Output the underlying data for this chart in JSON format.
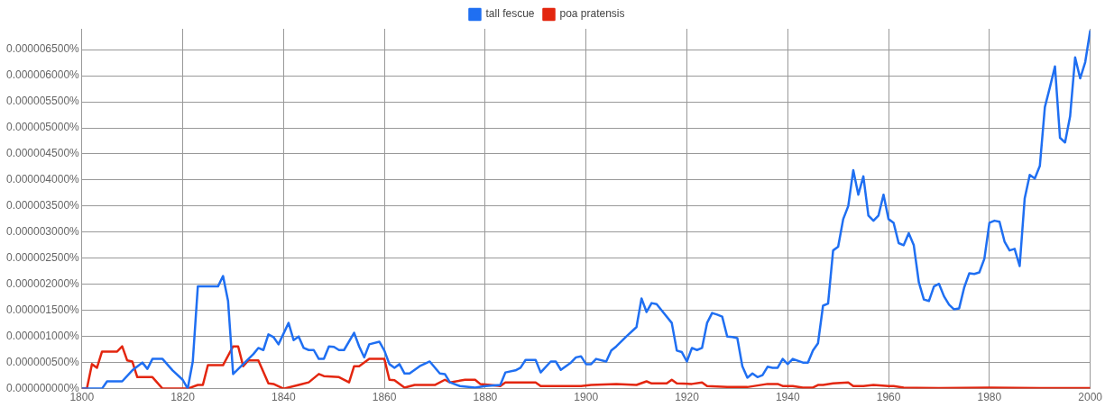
{
  "chart_data": {
    "type": "line",
    "legend": "top",
    "grid": true,
    "xlim": [
      1800,
      2000
    ],
    "xticks": [
      1800,
      1820,
      1840,
      1860,
      1880,
      1900,
      1920,
      1940,
      1960,
      1980,
      2000
    ],
    "ylim": [
      0,
      6.9e-06
    ],
    "yticks": [
      {
        "value": 0,
        "label": "0.000000000%"
      },
      {
        "value": 5e-07,
        "label": "0.000000500%"
      },
      {
        "value": 1e-06,
        "label": "0.000001000%"
      },
      {
        "value": 1.5e-06,
        "label": "0.000001500%"
      },
      {
        "value": 2e-06,
        "label": "0.000002000%"
      },
      {
        "value": 2.5e-06,
        "label": "0.000002500%"
      },
      {
        "value": 3e-06,
        "label": "0.000003000%"
      },
      {
        "value": 3.5e-06,
        "label": "0.000003500%"
      },
      {
        "value": 4e-06,
        "label": "0.000004000%"
      },
      {
        "value": 4.5e-06,
        "label": "0.000004500%"
      },
      {
        "value": 5e-06,
        "label": "0.000005000%"
      },
      {
        "value": 5.5e-06,
        "label": "0.000005500%"
      },
      {
        "value": 6e-06,
        "label": "0.000006000%"
      },
      {
        "value": 6.5e-06,
        "label": "0.000006500%"
      }
    ],
    "series": [
      {
        "name": "tall fescue",
        "color": "#1f6ff2",
        "x": [
          1800,
          1804,
          1805,
          1808,
          1810,
          1812,
          1813,
          1814,
          1816,
          1818,
          1820,
          1821,
          1822,
          1823,
          1827,
          1828,
          1829,
          1830,
          1832,
          1834,
          1835,
          1836,
          1837,
          1838,
          1839,
          1841,
          1842,
          1843,
          1844,
          1845,
          1846,
          1847,
          1848,
          1849,
          1850,
          1851,
          1852,
          1854,
          1855,
          1856,
          1857,
          1859,
          1860,
          1861,
          1862,
          1863,
          1864,
          1865,
          1867,
          1869,
          1871,
          1872,
          1873,
          1875,
          1878,
          1880,
          1883,
          1884,
          1886,
          1887,
          1888,
          1890,
          1891,
          1893,
          1894,
          1895,
          1897,
          1898,
          1899,
          1900,
          1901,
          1902,
          1904,
          1905,
          1906,
          1908,
          1910,
          1911,
          1912,
          1913,
          1914,
          1915,
          1917,
          1918,
          1919,
          1920,
          1921,
          1922,
          1923,
          1924,
          1925,
          1926,
          1927,
          1928,
          1929,
          1930,
          1931,
          1932,
          1933,
          1934,
          1935,
          1936,
          1937,
          1938,
          1939,
          1940,
          1941,
          1943,
          1944,
          1945,
          1946,
          1947,
          1948,
          1949,
          1950,
          1951,
          1952,
          1953,
          1954,
          1955,
          1956,
          1957,
          1958,
          1959,
          1960,
          1961,
          1962,
          1963,
          1964,
          1965,
          1966,
          1967,
          1968,
          1969,
          1970,
          1971,
          1972,
          1973,
          1974,
          1975,
          1976,
          1977,
          1978,
          1979,
          1980,
          1981,
          1982,
          1983,
          1984,
          1985,
          1986,
          1987,
          1988,
          1989,
          1990,
          1991,
          1992,
          1993,
          1994,
          1995,
          1996,
          1997,
          1998,
          1999,
          2000
        ],
        "values": [
          0,
          0,
          1.4e-07,
          1.4e-07,
          3.5e-07,
          5e-07,
          3.8e-07,
          5.7e-07,
          5.7e-07,
          3.5e-07,
          1.7e-07,
          0,
          5.2e-07,
          1.96e-06,
          1.96e-06,
          2.16e-06,
          1.68e-06,
          2.8e-07,
          4.7e-07,
          6.6e-07,
          7.8e-07,
          7.4e-07,
          1.04e-06,
          9.9e-07,
          8.5e-07,
          1.26e-06,
          9.3e-07,
          1e-06,
          7.8e-07,
          7.4e-07,
          7.4e-07,
          5.7e-07,
          5.7e-07,
          8.1e-07,
          8e-07,
          7.4e-07,
          7.4e-07,
          1.07e-06,
          8.1e-07,
          6e-07,
          8.5e-07,
          9e-07,
          7.3e-07,
          4.7e-07,
          4e-07,
          4.7e-07,
          2.9e-07,
          2.9e-07,
          4.3e-07,
          5.2e-07,
          2.9e-07,
          2.8e-07,
          1.2e-07,
          5e-08,
          2e-08,
          5e-08,
          7e-08,
          3.1e-07,
          3.5e-07,
          4e-07,
          5.5e-07,
          5.5e-07,
          3.1e-07,
          5.2e-07,
          5.2e-07,
          3.6e-07,
          5e-07,
          6e-07,
          6.2e-07,
          4.7e-07,
          4.7e-07,
          5.7e-07,
          5.2e-07,
          7.3e-07,
          8.1e-07,
          1e-06,
          1.18e-06,
          1.73e-06,
          1.47e-06,
          1.64e-06,
          1.62e-06,
          1.5e-06,
          1.26e-06,
          7.3e-07,
          7e-07,
          5.2e-07,
          7.8e-07,
          7.4e-07,
          7.8e-07,
          1.26e-06,
          1.45e-06,
          1.42e-06,
          1.38e-06,
          1e-06,
          9.9e-07,
          9.7e-07,
          4.3e-07,
          2.1e-07,
          2.9e-07,
          2.2e-07,
          2.6e-07,
          4.2e-07,
          4e-07,
          4e-07,
          5.7e-07,
          4.7e-07,
          5.7e-07,
          5e-07,
          5e-07,
          7.3e-07,
          8.7e-07,
          1.59e-06,
          1.63e-06,
          2.65e-06,
          2.72e-06,
          3.25e-06,
          3.5e-06,
          4.19e-06,
          3.72e-06,
          4.07e-06,
          3.32e-06,
          3.22e-06,
          3.32e-06,
          3.72e-06,
          3.25e-06,
          3.18e-06,
          2.79e-06,
          2.75e-06,
          2.98e-06,
          2.75e-06,
          2.04e-06,
          1.71e-06,
          1.68e-06,
          1.96e-06,
          2.01e-06,
          1.77e-06,
          1.61e-06,
          1.52e-06,
          1.54e-06,
          1.94e-06,
          2.21e-06,
          2.2e-06,
          2.23e-06,
          2.49e-06,
          3.18e-06,
          3.22e-06,
          3.2e-06,
          2.82e-06,
          2.65e-06,
          2.68e-06,
          2.35e-06,
          3.65e-06,
          4.1e-06,
          4.03e-06,
          4.27e-06,
          5.4e-06,
          5.78e-06,
          6.18e-06,
          4.81e-06,
          4.72e-06,
          5.22e-06,
          6.35e-06,
          5.95e-06,
          6.26e-06,
          6.87e-06
        ]
      },
      {
        "name": "poa pratensis",
        "color": "#e3260f",
        "x": [
          1800,
          1801,
          1802,
          1803,
          1804,
          1807,
          1808,
          1809,
          1810,
          1811,
          1814,
          1816,
          1821,
          1823,
          1824,
          1825,
          1828,
          1830,
          1831,
          1832,
          1833,
          1835,
          1837,
          1838,
          1840,
          1843,
          1845,
          1847,
          1848,
          1851,
          1853,
          1854,
          1855,
          1857,
          1860,
          1861,
          1862,
          1864,
          1866,
          1870,
          1872,
          1873,
          1876,
          1878,
          1879,
          1881,
          1883,
          1884,
          1890,
          1891,
          1899,
          1901,
          1906,
          1910,
          1912,
          1913,
          1916,
          1917,
          1918,
          1921,
          1923,
          1924,
          1928,
          1932,
          1936,
          1938,
          1939,
          1941,
          1943,
          1945,
          1946,
          1947,
          1949,
          1952,
          1953,
          1955,
          1957,
          1960,
          1961,
          1963,
          1970,
          1980,
          1990,
          2000
        ],
        "values": [
          0,
          0,
          4.7e-07,
          4e-07,
          7.1e-07,
          7.1e-07,
          8.1e-07,
          5.4e-07,
          5.2e-07,
          2.2e-07,
          2.2e-07,
          0,
          0,
          7e-08,
          7e-08,
          4.5e-07,
          4.5e-07,
          8.1e-07,
          8.1e-07,
          4.3e-07,
          5.4e-07,
          5.4e-07,
          1e-07,
          9e-08,
          0,
          7e-08,
          1.2e-07,
          2.8e-07,
          2.4e-07,
          2.2e-07,
          1.2e-07,
          4.3e-07,
          4.3e-07,
          5.7e-07,
          5.7e-07,
          1.7e-07,
          1.6e-07,
          2e-08,
          7e-08,
          7e-08,
          1.7e-07,
          1.2e-07,
          1.7e-07,
          1.7e-07,
          9e-08,
          7e-08,
          5e-08,
          1.2e-07,
          1.2e-07,
          5e-08,
          5e-08,
          7e-08,
          9e-08,
          7e-08,
          1.4e-07,
          1e-07,
          1e-07,
          1.7e-07,
          1e-07,
          9e-08,
          1.2e-07,
          5e-08,
          3e-08,
          3e-08,
          9e-08,
          9e-08,
          5e-08,
          5e-08,
          2e-08,
          2e-08,
          7e-08,
          7e-08,
          1e-07,
          1.2e-07,
          5e-08,
          5e-08,
          7e-08,
          5e-08,
          5e-08,
          2e-08,
          1e-08,
          2e-08,
          1e-08,
          1e-08
        ]
      }
    ]
  }
}
